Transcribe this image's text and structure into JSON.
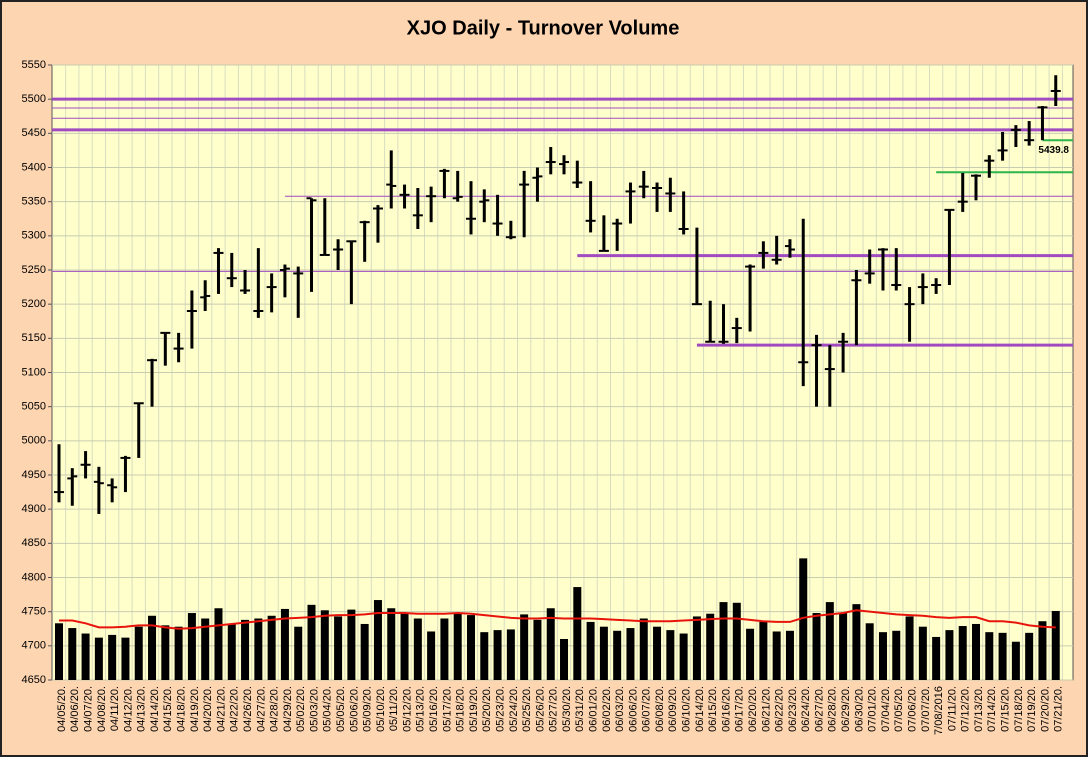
{
  "chart_data": {
    "type": "ohlc",
    "title": "XJO Daily - Turnover Volume",
    "categories": [
      "04/05/20.",
      "04/06/20.",
      "04/07/20.",
      "04/08/20.",
      "04/11/20.",
      "04/12/20.",
      "04/13/20.",
      "04/14/20.",
      "04/15/20.",
      "04/18/20.",
      "04/19/20.",
      "04/20/20.",
      "04/21/20.",
      "04/22/20.",
      "04/26/20.",
      "04/27/20.",
      "04/28/20.",
      "04/29/20.",
      "05/02/20.",
      "05/03/20.",
      "05/04/20.",
      "05/05/20.",
      "05/06/20.",
      "05/09/20.",
      "05/10/20.",
      "05/11/20.",
      "05/12/20.",
      "05/13/20.",
      "05/16/20.",
      "05/17/20.",
      "05/18/20.",
      "05/19/20.",
      "05/20/20.",
      "05/23/20.",
      "05/24/20.",
      "05/25/20.",
      "05/26/20.",
      "05/27/20.",
      "05/30/20.",
      "05/31/20.",
      "06/01/20.",
      "06/02/20.",
      "06/03/20.",
      "06/06/20.",
      "06/07/20.",
      "06/08/20.",
      "06/09/20.",
      "06/10/20.",
      "06/14/20.",
      "06/15/20.",
      "06/16/20.",
      "06/17/20.",
      "06/20/20.",
      "06/21/20.",
      "06/22/20.",
      "06/23/20.",
      "06/24/20.",
      "06/27/20.",
      "06/28/20.",
      "06/29/20.",
      "06/30/20.",
      "07/01/20.",
      "07/04/20.",
      "07/05/20.",
      "07/06/20.",
      "07/07/20.",
      "7/08/2016",
      "07/11/20.",
      "07/12/20.",
      "07/13/20.",
      "07/14/20.",
      "07/15/20.",
      "07/18/20.",
      "07/19/20.",
      "07/20/20.",
      "07/21/20."
    ],
    "open": [
      4925,
      4945,
      4965,
      4940,
      4935,
      4975,
      5055,
      5118,
      5158,
      5135,
      5190,
      5210,
      5275,
      5238,
      5220,
      5190,
      5225,
      5250,
      5245,
      5355,
      5272,
      5280,
      5292,
      5320,
      5340,
      5375,
      5360,
      5330,
      5358,
      5395,
      5355,
      5325,
      5350,
      5318,
      5298,
      5375,
      5385,
      5408,
      5405,
      5378,
      5322,
      5278,
      5318,
      5365,
      5372,
      5370,
      5362,
      5310,
      5200,
      5145,
      5145,
      5165,
      5255,
      5275,
      5265,
      5285,
      5115,
      5140,
      5105,
      5145,
      5235,
      5245,
      5280,
      5228,
      5200,
      5225,
      5228,
      5338,
      5350,
      5388,
      5410,
      5425,
      5455,
      5440,
      5488,
      5512
    ],
    "high": [
      4995,
      4960,
      4985,
      4962,
      4945,
      4978,
      5055,
      5120,
      5158,
      5158,
      5220,
      5235,
      5282,
      5275,
      5250,
      5282,
      5245,
      5258,
      5255,
      5355,
      5355,
      5295,
      5292,
      5322,
      5345,
      5425,
      5375,
      5370,
      5372,
      5398,
      5395,
      5380,
      5368,
      5360,
      5322,
      5395,
      5400,
      5430,
      5418,
      5410,
      5380,
      5330,
      5325,
      5378,
      5395,
      5378,
      5385,
      5365,
      5312,
      5205,
      5200,
      5180,
      5258,
      5292,
      5300,
      5295,
      5325,
      5155,
      5140,
      5158,
      5250,
      5280,
      5282,
      5282,
      5225,
      5245,
      5238,
      5338,
      5392,
      5390,
      5418,
      5452,
      5462,
      5468,
      5490,
      5535
    ],
    "low": [
      4910,
      4905,
      4945,
      4893,
      4910,
      4925,
      4975,
      5050,
      5110,
      5115,
      5135,
      5190,
      5215,
      5225,
      5215,
      5180,
      5188,
      5210,
      5180,
      5218,
      5272,
      5250,
      5200,
      5262,
      5290,
      5340,
      5340,
      5310,
      5320,
      5355,
      5350,
      5302,
      5320,
      5300,
      5295,
      5298,
      5350,
      5390,
      5390,
      5370,
      5305,
      5278,
      5278,
      5318,
      5355,
      5335,
      5335,
      5302,
      5200,
      5145,
      5142,
      5143,
      5160,
      5252,
      5258,
      5268,
      5080,
      5050,
      5050,
      5100,
      5140,
      5230,
      5220,
      5220,
      5145,
      5200,
      5215,
      5228,
      5335,
      5352,
      5385,
      5410,
      5430,
      5432,
      5440,
      5490
    ],
    "close": [
      4925,
      4948,
      4965,
      4938,
      4932,
      4975,
      5055,
      5118,
      5158,
      5135,
      5190,
      5212,
      5275,
      5238,
      5220,
      5190,
      5225,
      5252,
      5245,
      5352,
      5272,
      5280,
      5292,
      5320,
      5340,
      5373,
      5360,
      5330,
      5358,
      5395,
      5357,
      5325,
      5352,
      5318,
      5298,
      5375,
      5387,
      5408,
      5408,
      5378,
      5322,
      5278,
      5318,
      5365,
      5372,
      5370,
      5362,
      5310,
      5200,
      5145,
      5145,
      5165,
      5255,
      5275,
      5265,
      5280,
      5115,
      5140,
      5105,
      5145,
      5235,
      5245,
      5280,
      5228,
      5200,
      5225,
      5228,
      5338,
      5350,
      5388,
      5410,
      5425,
      5455,
      5440,
      5488,
      5512
    ],
    "volume": [
      4733,
      4726,
      4718,
      4712,
      4716,
      4712,
      4728,
      4744,
      4730,
      4728,
      4748,
      4740,
      4755,
      4732,
      4738,
      4740,
      4744,
      4754,
      4728,
      4760,
      4752,
      4743,
      4753,
      4732,
      4767,
      4755,
      4748,
      4740,
      4721,
      4740,
      4748,
      4745,
      4720,
      4723,
      4724,
      4746,
      4738,
      4755,
      4710,
      4786,
      4735,
      4728,
      4722,
      4726,
      4740,
      4728,
      4723,
      4718,
      4743,
      4747,
      4764,
      4763,
      4725,
      4735,
      4721,
      4722,
      4828,
      4748,
      4764,
      4748,
      4761,
      4733,
      4720,
      4722,
      4743,
      4728,
      4713,
      4723,
      4729,
      4732,
      4720,
      4719,
      4706,
      4719,
      4736,
      4751
    ],
    "moving_average": [
      4737,
      4737,
      4733,
      4727,
      4727,
      4728,
      4730,
      4730,
      4727,
      4725,
      4726,
      4728,
      4730,
      4732,
      4734,
      4736,
      4738,
      4740,
      4741,
      4742,
      4744,
      4745,
      4745,
      4746,
      4748,
      4748,
      4748,
      4747,
      4747,
      4747,
      4748,
      4747,
      4745,
      4743,
      4741,
      4740,
      4740,
      4741,
      4740,
      4740,
      4740,
      4739,
      4738,
      4737,
      4736,
      4736,
      4736,
      4737,
      4738,
      4739,
      4740,
      4740,
      4738,
      4736,
      4735,
      4735,
      4741,
      4744,
      4746,
      4748,
      4752,
      4750,
      4748,
      4746,
      4745,
      4744,
      4742,
      4741,
      4742,
      4742,
      4736,
      4736,
      4734,
      4730,
      4728,
      4727
    ],
    "bar_color": "#000000",
    "volume_color": "#000000",
    "ma_color": "#e8140c",
    "hlines": [
      {
        "value": 5500,
        "color": "#a04cc0",
        "width": 3
      },
      {
        "value": 5487,
        "color": "#a04cc0",
        "width": 1
      },
      {
        "value": 5472,
        "color": "#a04cc0",
        "width": 1
      },
      {
        "value": 5455,
        "color": "#a04cc0",
        "width": 3
      },
      {
        "value": 5358,
        "color": "#a04cc0",
        "width": 1,
        "from": "04/29/20."
      },
      {
        "value": 5248,
        "color": "#a04cc0",
        "width": 1
      },
      {
        "value": 5271,
        "color": "#a04cc0",
        "width": 3,
        "from": "05/31/20."
      },
      {
        "value": 5140,
        "color": "#a04cc0",
        "width": 3,
        "from": "06/14/20."
      },
      {
        "value": 5393,
        "color": "#2fb34a",
        "width": 2,
        "from": "7/08/2016"
      },
      {
        "value": 5439.8,
        "color": "#2fb34a",
        "width": 2,
        "from": "07/20/20.",
        "labeled": true
      }
    ],
    "ylim": [
      4650,
      5550
    ],
    "yticks": [
      4650,
      4700,
      4750,
      4800,
      4850,
      4900,
      4950,
      5000,
      5050,
      5100,
      5150,
      5200,
      5250,
      5300,
      5350,
      5400,
      5450,
      5500,
      5550
    ],
    "grid": true
  }
}
